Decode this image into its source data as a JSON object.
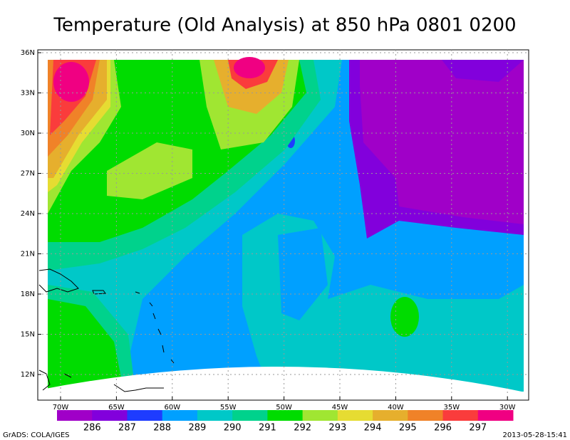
{
  "title": "Temperature (Old Analysis) at 850 hPa 0801 0200",
  "map": {
    "lat_labels": [
      "36N",
      "33N",
      "30N",
      "27N",
      "24N",
      "21N",
      "18N",
      "15N",
      "12N"
    ],
    "lon_labels": [
      "70W",
      "65W",
      "60W",
      "55W",
      "50W",
      "45W",
      "40W",
      "35W",
      "30W"
    ]
  },
  "colorbar": {
    "colors": [
      "#a000c8",
      "#8200dc",
      "#1e3cff",
      "#00a0ff",
      "#00c8c8",
      "#00d28c",
      "#00dc00",
      "#a0e632",
      "#e6dc32",
      "#e6af2d",
      "#f08228",
      "#fa3c3c",
      "#f00082"
    ],
    "labels": [
      "286",
      "287",
      "288",
      "289",
      "290",
      "291",
      "292",
      "293",
      "294",
      "295",
      "296",
      "297"
    ]
  },
  "footer": {
    "left": "GrADS: COLA/IGES",
    "right": "2013-05-28-15:41"
  }
}
